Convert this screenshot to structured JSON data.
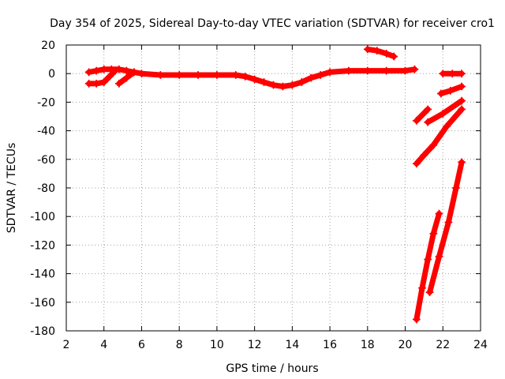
{
  "chart_data": {
    "type": "scatter",
    "title": "Day 354 of 2025, Sidereal Day-to-day VTEC variation (SDTVAR) for receiver cro1",
    "xlabel": "GPS time / hours",
    "ylabel": "SDTVAR / TECUs",
    "xlim": [
      2,
      24
    ],
    "ylim": [
      -180,
      20
    ],
    "xticks": [
      2,
      4,
      6,
      8,
      10,
      12,
      14,
      16,
      18,
      20,
      22,
      24
    ],
    "yticks": [
      20,
      0,
      -20,
      -40,
      -60,
      -80,
      -100,
      -120,
      -140,
      -160,
      -180
    ],
    "grid": true,
    "color": "#ff0000",
    "marker": "plus",
    "series": [
      {
        "x": [
          3.2,
          3.6,
          4.0,
          4.4,
          4.8,
          5.2,
          5.6,
          6.0,
          7.0,
          8.0,
          9.0,
          10.0,
          11.0,
          11.5,
          12.0,
          12.5,
          13.0,
          13.5,
          14.0,
          14.5,
          15.0,
          15.5,
          16.0,
          17.0,
          18.0,
          19.0,
          20.0,
          20.5
        ],
        "y": [
          1,
          2,
          3,
          3,
          3,
          2,
          1,
          0,
          -1,
          -1,
          -1,
          -1,
          -1,
          -2,
          -4,
          -6,
          -8,
          -9,
          -8,
          -6,
          -3,
          -1,
          1,
          2,
          2,
          2,
          2,
          3
        ]
      },
      {
        "x": [
          3.2,
          3.6,
          4.0
        ],
        "y": [
          -7,
          -7,
          -6
        ]
      },
      {
        "x": [
          4.0,
          4.3,
          4.6
        ],
        "y": [
          -6,
          -2,
          2
        ]
      },
      {
        "x": [
          4.8,
          5.2,
          5.6
        ],
        "y": [
          -7,
          -3,
          1
        ]
      },
      {
        "x": [
          18.0,
          18.5,
          19.0,
          19.4
        ],
        "y": [
          17,
          16,
          14,
          12
        ]
      },
      {
        "x": [
          22.0,
          22.5,
          23.0
        ],
        "y": [
          0,
          0,
          0
        ]
      },
      {
        "x": [
          21.9,
          22.4,
          23.0
        ],
        "y": [
          -14,
          -12,
          -9
        ]
      },
      {
        "x": [
          20.6,
          21.2
        ],
        "y": [
          -33,
          -25
        ]
      },
      {
        "x": [
          21.2,
          22.0,
          23.0
        ],
        "y": [
          -34,
          -28,
          -19
        ]
      },
      {
        "x": [
          20.6,
          21.0,
          21.5,
          22.2,
          23.0
        ],
        "y": [
          -63,
          -57,
          -50,
          -37,
          -25
        ]
      },
      {
        "x": [
          20.6,
          20.9,
          21.2,
          21.5,
          21.8
        ],
        "y": [
          -172,
          -150,
          -130,
          -112,
          -98
        ]
      },
      {
        "x": [
          21.3,
          21.8,
          22.3,
          22.7,
          23.0
        ],
        "y": [
          -153,
          -128,
          -104,
          -80,
          -62
        ]
      }
    ]
  }
}
